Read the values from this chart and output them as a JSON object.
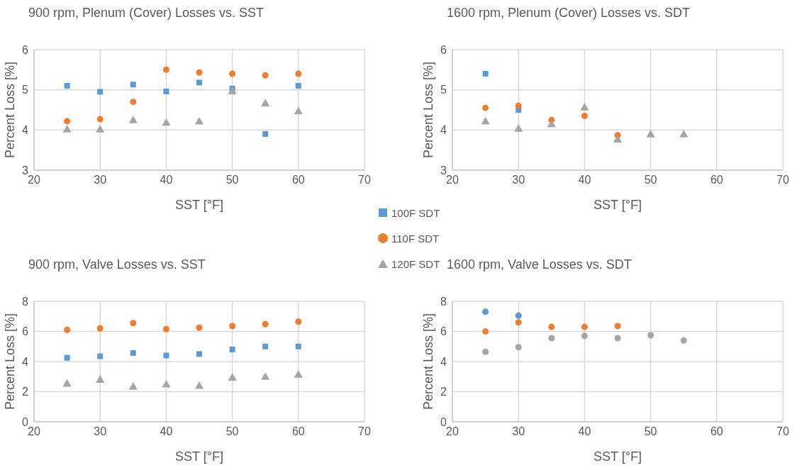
{
  "chart_data": [
    {
      "type": "scatter",
      "title": "900 rpm, Plenum (Cover) Losses vs. SST",
      "xlabel": "SST [°F]",
      "ylabel": "Percent Loss [%]",
      "xlim": [
        20,
        70
      ],
      "xticks": [
        20,
        30,
        40,
        50,
        60,
        70
      ],
      "ylim": [
        3,
        6
      ],
      "yticks": [
        3,
        4,
        5,
        6
      ],
      "grid": true,
      "legend": "right",
      "series": [
        {
          "name": "100F SDT",
          "color": "#5b9bd5",
          "marker": "square",
          "x": [
            25,
            30,
            35,
            40,
            45,
            50,
            55,
            60
          ],
          "values": [
            5.1,
            4.95,
            5.13,
            4.96,
            5.18,
            5.03,
            3.9,
            5.1
          ]
        },
        {
          "name": "110F SDT",
          "color": "#ed7d31",
          "marker": "circle",
          "x": [
            25,
            30,
            35,
            40,
            45,
            50,
            55,
            60
          ],
          "values": [
            4.22,
            4.27,
            4.7,
            5.5,
            5.43,
            5.4,
            5.36,
            5.4
          ]
        },
        {
          "name": "120F SDT",
          "color": "#a5a5a5",
          "marker": "triangle",
          "x": [
            25,
            30,
            35,
            40,
            45,
            50,
            55,
            60
          ],
          "values": [
            4.0,
            4.0,
            4.23,
            4.17,
            4.2,
            4.95,
            4.65,
            4.45
          ]
        }
      ]
    },
    {
      "type": "scatter",
      "title": "1600 rpm, Plenum (Cover) Losses vs. SDT",
      "xlabel": "SST [°F]",
      "ylabel": "Percent Loss [%]",
      "xlim": [
        20,
        70
      ],
      "xticks": [
        20,
        30,
        40,
        50,
        60,
        70
      ],
      "ylim": [
        3,
        6
      ],
      "yticks": [
        3,
        4,
        5,
        6
      ],
      "grid": true,
      "series": [
        {
          "color": "#5b9bd5",
          "marker": "square",
          "x": [
            25,
            30
          ],
          "values": [
            5.4,
            4.5
          ]
        },
        {
          "color": "#ed7d31",
          "marker": "circle",
          "x": [
            25,
            30,
            35,
            40,
            45
          ],
          "values": [
            4.55,
            4.6,
            4.25,
            4.35,
            3.87
          ]
        },
        {
          "color": "#a5a5a5",
          "marker": "triangle",
          "x": [
            25,
            30,
            35,
            40,
            45,
            50,
            55
          ],
          "values": [
            4.2,
            4.02,
            4.13,
            4.55,
            3.75,
            3.88,
            3.88
          ]
        }
      ]
    },
    {
      "type": "scatter",
      "title": "900 rpm, Valve Losses vs. SST",
      "xlabel": "SST [°F]",
      "ylabel": "Percent Loss [%]",
      "xlim": [
        20,
        70
      ],
      "xticks": [
        20,
        30,
        40,
        50,
        60,
        70
      ],
      "ylim": [
        0,
        8
      ],
      "yticks": [
        0,
        2,
        4,
        6,
        8
      ],
      "grid": true,
      "series": [
        {
          "color": "#5b9bd5",
          "marker": "square",
          "x": [
            25,
            30,
            35,
            40,
            45,
            50,
            55,
            60
          ],
          "values": [
            4.25,
            4.35,
            4.57,
            4.4,
            4.5,
            4.8,
            5.0,
            5.0
          ]
        },
        {
          "color": "#ed7d31",
          "marker": "circle",
          "x": [
            25,
            30,
            35,
            40,
            45,
            50,
            55,
            60
          ],
          "values": [
            6.1,
            6.2,
            6.55,
            6.15,
            6.25,
            6.35,
            6.48,
            6.65
          ]
        },
        {
          "color": "#a5a5a5",
          "marker": "triangle",
          "x": [
            25,
            30,
            35,
            40,
            45,
            50,
            55,
            60
          ],
          "values": [
            2.5,
            2.75,
            2.3,
            2.45,
            2.35,
            2.9,
            2.95,
            3.1
          ]
        }
      ]
    },
    {
      "type": "scatter",
      "title": "1600 rpm, Valve Losses vs. SDT",
      "xlabel": "SST [°F]",
      "ylabel": "Percent Loss [%]",
      "xlim": [
        20,
        70
      ],
      "xticks": [
        20,
        30,
        40,
        50,
        60,
        70
      ],
      "ylim": [
        0,
        8
      ],
      "yticks": [
        0,
        2,
        4,
        6,
        8
      ],
      "grid": true,
      "series": [
        {
          "color": "#5b9bd5",
          "marker": "circle",
          "x": [
            25,
            30
          ],
          "values": [
            7.3,
            7.05
          ]
        },
        {
          "color": "#ed7d31",
          "marker": "circle",
          "x": [
            25,
            30,
            35,
            40,
            45
          ],
          "values": [
            6.0,
            6.6,
            6.3,
            6.3,
            6.35
          ]
        },
        {
          "color": "#a5a5a5",
          "marker": "circle",
          "x": [
            25,
            30,
            35,
            40,
            45,
            50,
            55
          ],
          "values": [
            4.65,
            4.95,
            5.55,
            5.7,
            5.55,
            5.75,
            5.4
          ]
        }
      ]
    }
  ]
}
